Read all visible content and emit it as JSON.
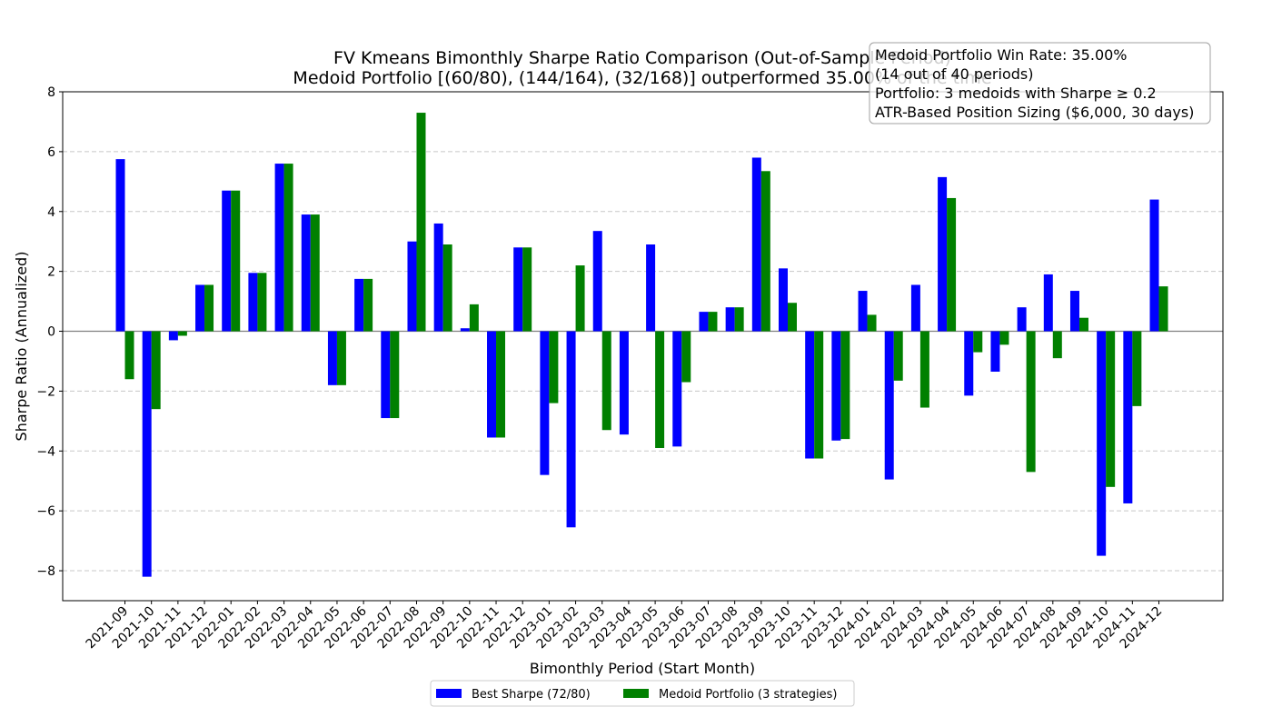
{
  "chart_data": {
    "type": "bar",
    "title_line1": "FV Kmeans Bimonthly Sharpe Ratio Comparison (Out-of-Sample Period)",
    "title_line2": "Medoid Portfolio [(60/80), (144/164), (32/168)] outperformed 35.00% of the time",
    "xlabel": "Bimonthly Period (Start Month)",
    "ylabel": "Sharpe Ratio (Annualized)",
    "ylim": [
      -9,
      8
    ],
    "yticks": [
      -8,
      -6,
      -4,
      -2,
      0,
      2,
      4,
      6,
      8
    ],
    "grid": "y-dashed",
    "legend_position": "bottom-center",
    "categories": [
      "2021-09",
      "2021-10",
      "2021-11",
      "2021-12",
      "2022-01",
      "2022-02",
      "2022-03",
      "2022-04",
      "2022-05",
      "2022-06",
      "2022-07",
      "2022-08",
      "2022-09",
      "2022-10",
      "2022-11",
      "2022-12",
      "2023-01",
      "2023-02",
      "2023-03",
      "2023-04",
      "2023-05",
      "2023-06",
      "2023-07",
      "2023-08",
      "2023-09",
      "2023-10",
      "2023-11",
      "2023-12",
      "2024-01",
      "2024-02",
      "2024-03",
      "2024-04",
      "2024-05",
      "2024-06",
      "2024-07",
      "2024-08",
      "2024-09",
      "2024-10",
      "2024-11",
      "2024-12"
    ],
    "series": [
      {
        "name": "Best Sharpe (72/80)",
        "color": "#0000ff",
        "values": [
          5.75,
          -8.2,
          -0.3,
          1.55,
          4.7,
          1.95,
          5.6,
          3.9,
          -1.8,
          1.75,
          -2.9,
          3.0,
          3.6,
          0.1,
          -3.55,
          2.8,
          -4.8,
          -6.55,
          3.35,
          -3.45,
          2.9,
          -3.85,
          0.65,
          0.8,
          5.8,
          2.1,
          -4.25,
          -3.65,
          1.35,
          -4.95,
          1.55,
          5.15,
          -2.15,
          -1.35,
          0.8,
          1.9,
          1.35,
          -7.5,
          -5.75,
          4.4
        ]
      },
      {
        "name": "Medoid Portfolio (3 strategies)",
        "color": "#008000",
        "values": [
          -1.6,
          -2.6,
          -0.15,
          1.55,
          4.7,
          1.95,
          5.6,
          3.9,
          -1.8,
          1.75,
          -2.9,
          7.3,
          2.9,
          0.9,
          -3.55,
          2.8,
          -2.4,
          2.2,
          -3.3,
          0.0,
          -3.9,
          -1.7,
          0.65,
          0.8,
          5.35,
          0.95,
          -4.25,
          -3.6,
          0.55,
          -1.65,
          -2.55,
          4.45,
          -0.7,
          -0.45,
          -4.7,
          -0.9,
          0.45,
          -5.2,
          -2.5,
          1.5
        ]
      }
    ],
    "info_box": [
      "Medoid Portfolio Win Rate: 35.00%",
      "(14 out of 40 periods)",
      "Portfolio: 3 medoids with Sharpe ≥ 0.2",
      "ATR-Based Position Sizing ($6,000, 30 days)"
    ]
  }
}
